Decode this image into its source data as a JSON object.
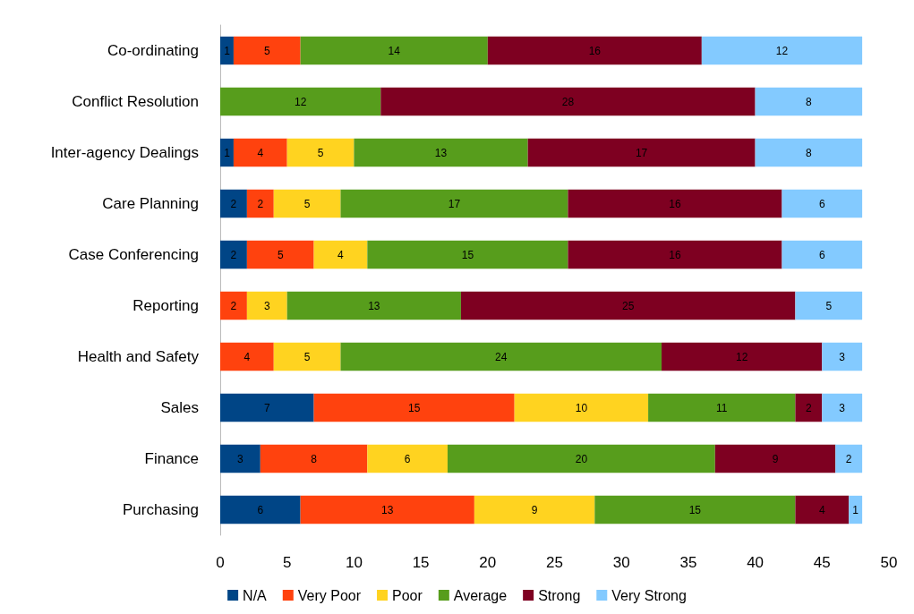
{
  "chart_data": {
    "type": "bar",
    "orientation": "horizontal",
    "stacked": true,
    "data_labels": true,
    "grid": false,
    "legend": "bottom",
    "categories": [
      "Co-ordinating",
      "Conflict Resolution",
      "Inter-agency Dealings",
      "Care Planning",
      "Case Conferencing",
      "Reporting",
      "Health and Safety",
      "Sales",
      "Finance",
      "Purchasing"
    ],
    "xlim": [
      0,
      50
    ],
    "xticks": [
      0,
      5,
      10,
      15,
      20,
      25,
      30,
      35,
      40,
      45,
      50
    ],
    "series": [
      {
        "name": "N/A",
        "color": "#004586",
        "values": [
          1,
          null,
          1,
          2,
          2,
          null,
          null,
          7,
          3,
          6
        ]
      },
      {
        "name": "Very Poor",
        "color": "#ff420e",
        "values": [
          5,
          null,
          4,
          2,
          5,
          2,
          4,
          15,
          8,
          13
        ]
      },
      {
        "name": "Poor",
        "color": "#ffd320",
        "values": [
          null,
          null,
          5,
          5,
          4,
          3,
          5,
          10,
          6,
          9
        ]
      },
      {
        "name": "Average",
        "color": "#579d1c",
        "values": [
          14,
          12,
          13,
          17,
          15,
          13,
          24,
          11,
          20,
          15
        ]
      },
      {
        "name": "Strong",
        "color": "#7e0021",
        "values": [
          16,
          28,
          17,
          16,
          16,
          25,
          12,
          2,
          9,
          4
        ]
      },
      {
        "name": "Very Strong",
        "color": "#83caff",
        "values": [
          12,
          8,
          8,
          6,
          6,
          5,
          3,
          3,
          2,
          1
        ]
      }
    ]
  }
}
